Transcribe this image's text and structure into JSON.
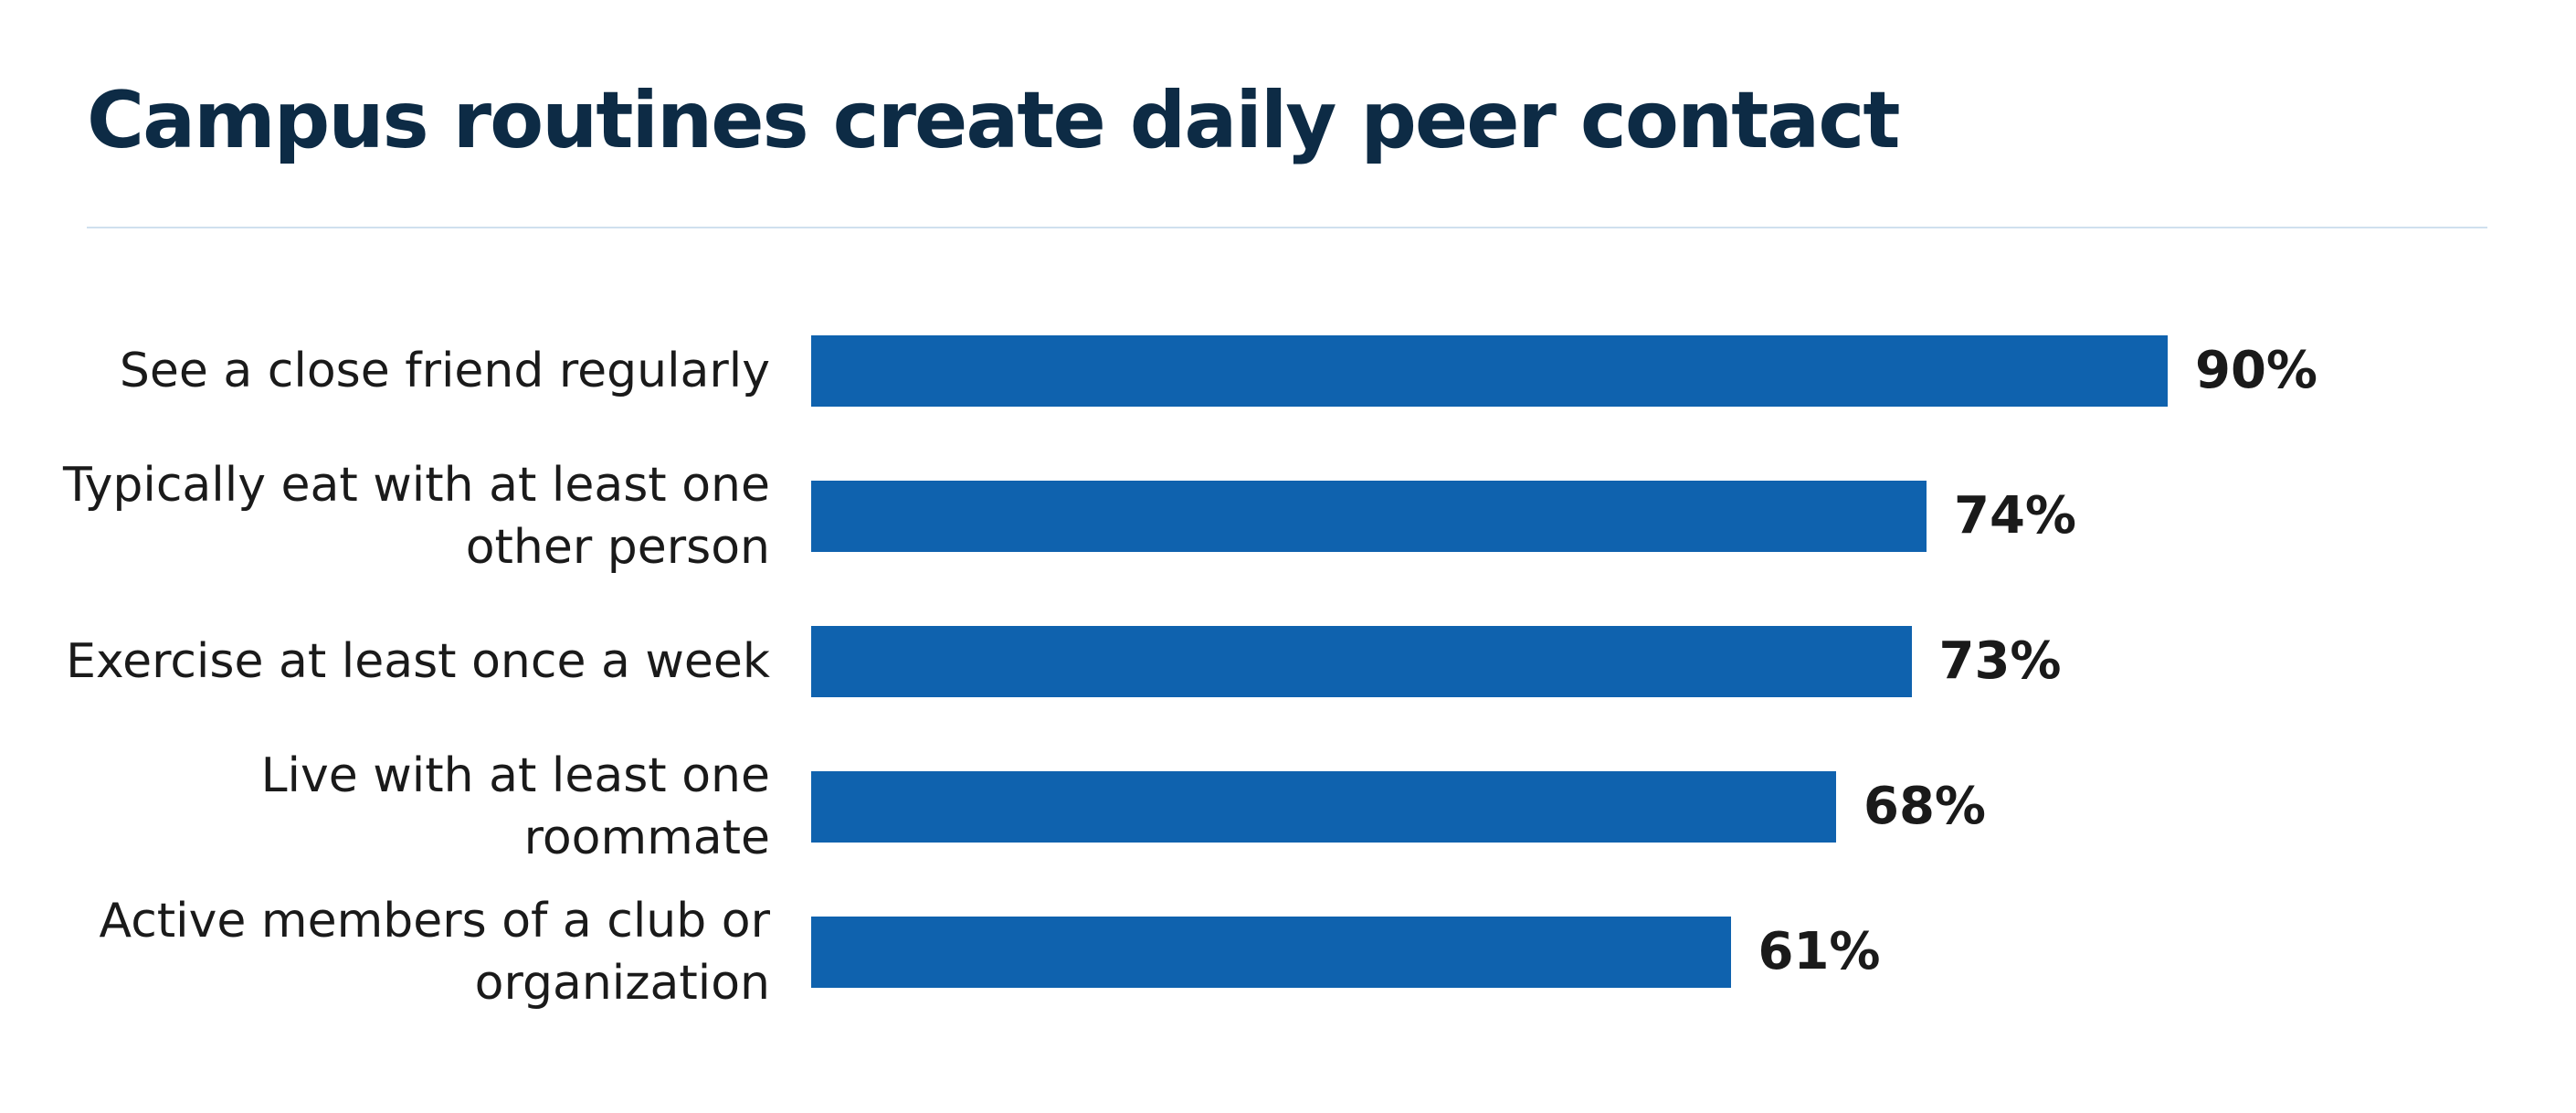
{
  "chart_data": {
    "type": "bar",
    "orientation": "horizontal",
    "title": "Campus routines create daily peer contact",
    "categories": [
      "See a close friend regularly",
      "Typically eat with at least one other person",
      "Exercise at least once a week",
      "Live with at least one roommate",
      "Active members of a club or organization"
    ],
    "values": [
      90,
      74,
      73,
      68,
      61
    ],
    "value_labels": [
      "90%",
      "74%",
      "73%",
      "68%",
      "61%"
    ],
    "color": "#0f62ae"
  }
}
